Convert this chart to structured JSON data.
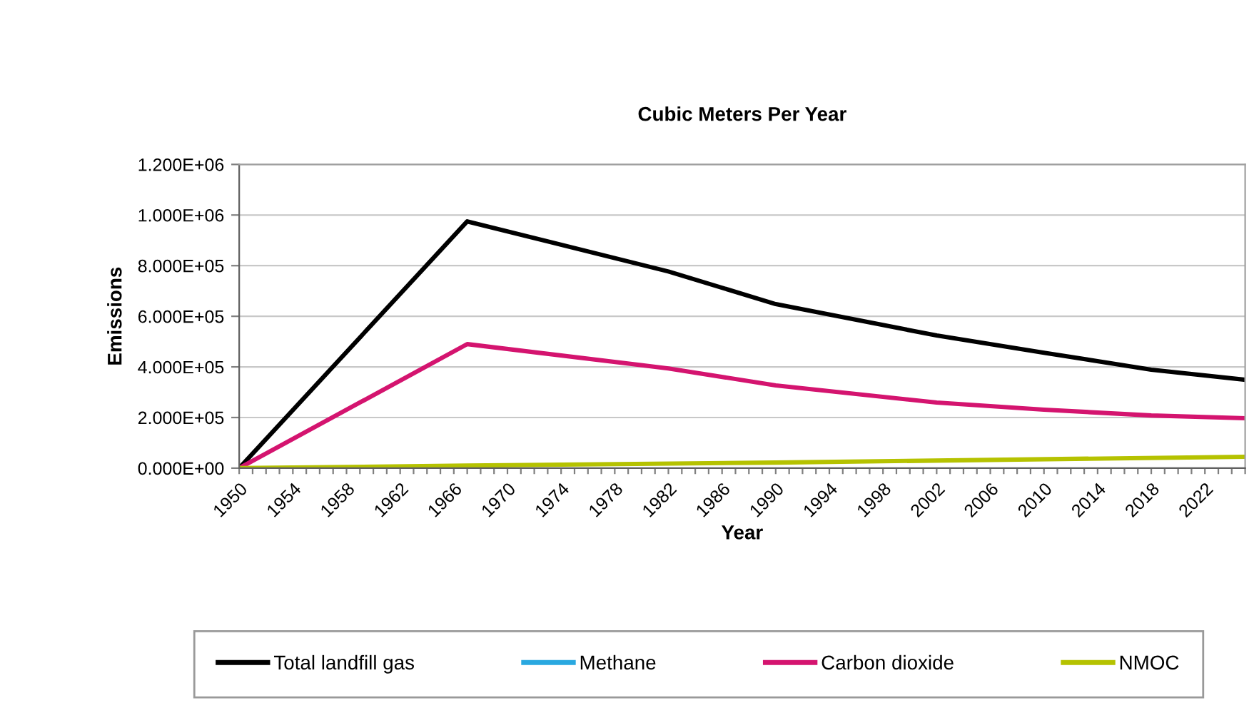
{
  "chart_data": {
    "type": "line",
    "title": "Cubic Meters Per Year",
    "xlabel": "Year",
    "ylabel": "Emissions",
    "xlim": [
      1950,
      2025
    ],
    "ylim": [
      0,
      1200000
    ],
    "xticks": [
      1950,
      {
        "value": 1951,
        "label": null
      },
      {
        "value": 1952,
        "label": null
      },
      {
        "value": 1953,
        "label": null
      },
      1954,
      {
        "value": 1955,
        "label": null
      },
      {
        "value": 1956,
        "label": null
      },
      {
        "value": 1957,
        "label": null
      },
      1958,
      {
        "value": 1959,
        "label": null
      },
      {
        "value": 1960,
        "label": null
      },
      {
        "value": 1961,
        "label": null
      },
      1962,
      {
        "value": 1963,
        "label": null
      },
      {
        "value": 1964,
        "label": null
      },
      {
        "value": 1965,
        "label": null
      },
      1966,
      {
        "value": 1967,
        "label": null
      },
      {
        "value": 1968,
        "label": null
      },
      {
        "value": 1969,
        "label": null
      },
      1970,
      {
        "value": 1971,
        "label": null
      },
      {
        "value": 1972,
        "label": null
      },
      {
        "value": 1973,
        "label": null
      },
      1974,
      {
        "value": 1975,
        "label": null
      },
      {
        "value": 1976,
        "label": null
      },
      {
        "value": 1977,
        "label": null
      },
      1978,
      {
        "value": 1979,
        "label": null
      },
      {
        "value": 1980,
        "label": null
      },
      {
        "value": 1981,
        "label": null
      },
      1982,
      {
        "value": 1983,
        "label": null
      },
      {
        "value": 1984,
        "label": null
      },
      {
        "value": 1985,
        "label": null
      },
      1986,
      {
        "value": 1987,
        "label": null
      },
      {
        "value": 1988,
        "label": null
      },
      {
        "value": 1989,
        "label": null
      },
      1990,
      {
        "value": 1991,
        "label": null
      },
      {
        "value": 1992,
        "label": null
      },
      {
        "value": 1993,
        "label": null
      },
      1994,
      {
        "value": 1995,
        "label": null
      },
      {
        "value": 1996,
        "label": null
      },
      {
        "value": 1997,
        "label": null
      },
      1998,
      {
        "value": 1999,
        "label": null
      },
      {
        "value": 2000,
        "label": null
      },
      {
        "value": 2001,
        "label": null
      },
      2002,
      {
        "value": 2003,
        "label": null
      },
      {
        "value": 2004,
        "label": null
      },
      {
        "value": 2005,
        "label": null
      },
      2006,
      {
        "value": 2007,
        "label": null
      },
      {
        "value": 2008,
        "label": null
      },
      {
        "value": 2009,
        "label": null
      },
      2010,
      {
        "value": 2011,
        "label": null
      },
      {
        "value": 2012,
        "label": null
      },
      {
        "value": 2013,
        "label": null
      },
      2014,
      {
        "value": 2015,
        "label": null
      },
      {
        "value": 2016,
        "label": null
      },
      {
        "value": 2017,
        "label": null
      },
      2018,
      {
        "value": 2019,
        "label": null
      },
      {
        "value": 2020,
        "label": null
      },
      {
        "value": 2021,
        "label": null
      },
      2022,
      {
        "value": 2023,
        "label": null
      },
      {
        "value": 2024,
        "label": null
      },
      {
        "value": 2025,
        "label": null
      }
    ],
    "yticks": [
      {
        "value": 0,
        "label": "0.000E+00"
      },
      {
        "value": 200000,
        "label": "2.000E+05"
      },
      {
        "value": 400000,
        "label": "4.000E+05"
      },
      {
        "value": 600000,
        "label": "6.000E+05"
      },
      {
        "value": 800000,
        "label": "8.000E+05"
      },
      {
        "value": 1000000,
        "label": "1.000E+06"
      },
      {
        "value": 1200000,
        "label": "1.200E+06"
      }
    ],
    "grid": "y",
    "legend": "bottom",
    "marker": "none",
    "line_style": "solid",
    "series": [
      {
        "name": "Total landfill gas",
        "color": "#000000",
        "x": [
          1950,
          1967,
          1982,
          1990,
          2002,
          2010,
          2018,
          2025
        ],
        "values": [
          0,
          975000,
          777000,
          648000,
          524000,
          456000,
          389000,
          349000
        ]
      },
      {
        "name": "Methane",
        "color": "#29a8e0"
      },
      {
        "name": "Carbon dioxide",
        "color": "#d4146f",
        "x": [
          1950,
          1967,
          1982,
          1990,
          2002,
          2010,
          2018,
          2025
        ],
        "values": [
          0,
          490000,
          394000,
          327000,
          259000,
          231000,
          208000,
          197000
        ]
      },
      {
        "name": "NMOC",
        "color": "#b5c200",
        "x": [
          1950,
          1967,
          1990,
          2025
        ],
        "values": [
          0,
          10000,
          22000,
          45000
        ]
      }
    ]
  }
}
